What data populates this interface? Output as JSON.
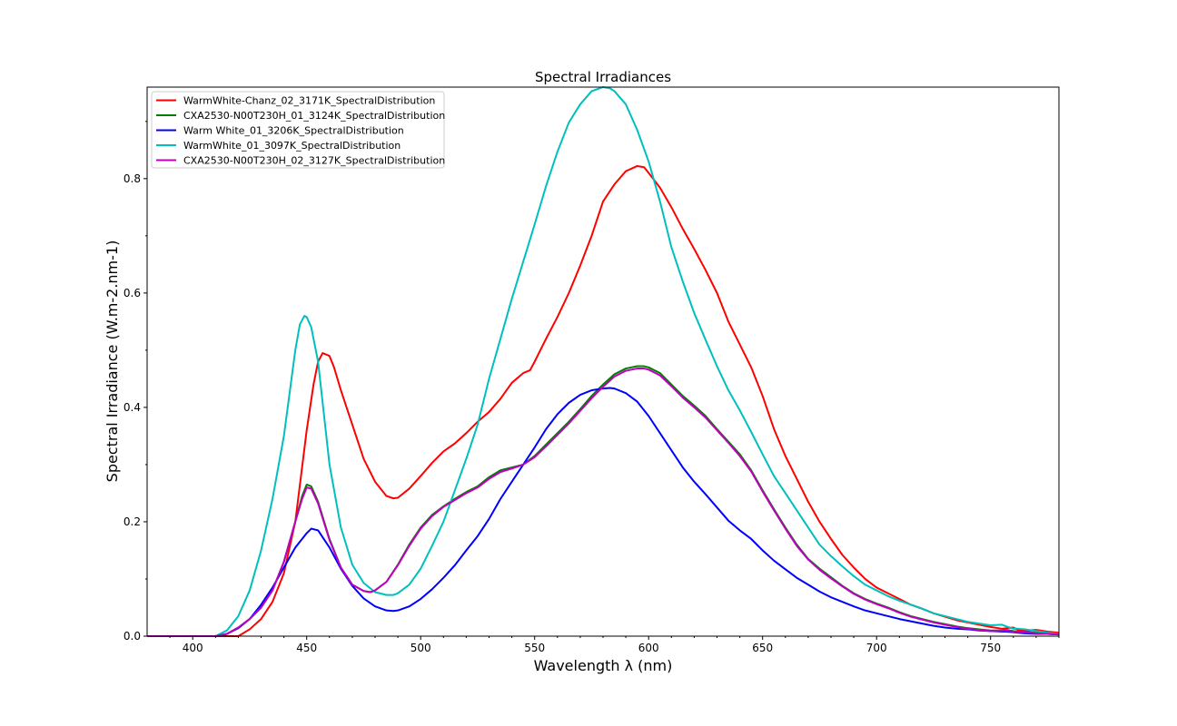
{
  "chart_data": {
    "type": "line",
    "title": "Spectral Irradiances",
    "xlabel": "Wavelength λ (nm)",
    "ylabel": "Spectral Irradiance (W.m-2.nm-1)",
    "xlim": [
      380,
      780
    ],
    "ylim": [
      0,
      0.96
    ],
    "xticks": [
      400,
      450,
      500,
      550,
      600,
      650,
      700,
      750
    ],
    "yticks": [
      0.0,
      0.2,
      0.4,
      0.6,
      0.8
    ],
    "xtick_labels": [
      "400",
      "450",
      "500",
      "550",
      "600",
      "650",
      "700",
      "750"
    ],
    "ytick_labels": [
      "0.0",
      "0.2",
      "0.4",
      "0.6",
      "0.8"
    ],
    "grid": false,
    "legend_position": "top-left",
    "series": [
      {
        "name": "WarmWhite-Chanz_02_3171K_SpectralDistribution",
        "color": "#ff0000",
        "x": [
          380,
          410,
          420,
          425,
          430,
          435,
          440,
          445,
          450,
          453,
          455,
          457,
          460,
          462,
          465,
          470,
          475,
          480,
          485,
          488,
          490,
          495,
          500,
          505,
          510,
          515,
          520,
          525,
          530,
          535,
          540,
          545,
          548,
          550,
          555,
          560,
          565,
          570,
          575,
          580,
          585,
          590,
          595,
          598,
          600,
          605,
          610,
          615,
          620,
          625,
          630,
          635,
          640,
          645,
          650,
          655,
          660,
          665,
          670,
          675,
          680,
          685,
          690,
          695,
          700,
          705,
          710,
          715,
          720,
          725,
          730,
          735,
          740,
          745,
          750,
          755,
          757,
          760,
          762,
          765,
          770,
          775,
          780
        ],
        "y": [
          0,
          0,
          0.0,
          0.012,
          0.03,
          0.06,
          0.11,
          0.2,
          0.36,
          0.44,
          0.48,
          0.495,
          0.49,
          0.47,
          0.43,
          0.37,
          0.31,
          0.27,
          0.245,
          0.241,
          0.242,
          0.258,
          0.28,
          0.303,
          0.323,
          0.337,
          0.355,
          0.375,
          0.392,
          0.415,
          0.443,
          0.46,
          0.465,
          0.48,
          0.52,
          0.558,
          0.6,
          0.648,
          0.7,
          0.76,
          0.79,
          0.813,
          0.822,
          0.82,
          0.81,
          0.784,
          0.75,
          0.712,
          0.677,
          0.64,
          0.6,
          0.55,
          0.51,
          0.47,
          0.42,
          0.362,
          0.315,
          0.275,
          0.235,
          0.2,
          0.17,
          0.142,
          0.12,
          0.1,
          0.085,
          0.075,
          0.065,
          0.055,
          0.048,
          0.04,
          0.034,
          0.028,
          0.024,
          0.02,
          0.016,
          0.013,
          0.014,
          0.015,
          0.011,
          0.01,
          0.011,
          0.008,
          0.006
        ]
      },
      {
        "name": "CXA2530-N00T230H_01_3124K_SpectralDistribution",
        "color": "#008000",
        "x": [
          380,
          410,
          415,
          420,
          425,
          430,
          435,
          440,
          445,
          448,
          450,
          452,
          455,
          460,
          465,
          470,
          475,
          478,
          480,
          485,
          490,
          495,
          500,
          505,
          510,
          515,
          520,
          525,
          530,
          535,
          540,
          545,
          550,
          555,
          560,
          565,
          570,
          575,
          580,
          585,
          590,
          595,
          598,
          600,
          605,
          610,
          615,
          620,
          625,
          630,
          635,
          640,
          645,
          650,
          655,
          660,
          665,
          670,
          675,
          680,
          685,
          690,
          695,
          700,
          705,
          710,
          715,
          720,
          725,
          730,
          735,
          740,
          745,
          750,
          755,
          757,
          760,
          762,
          765,
          770,
          775,
          780
        ],
        "y": [
          0,
          0,
          0.004,
          0.015,
          0.03,
          0.05,
          0.08,
          0.13,
          0.2,
          0.245,
          0.265,
          0.262,
          0.235,
          0.17,
          0.12,
          0.09,
          0.079,
          0.077,
          0.08,
          0.095,
          0.125,
          0.16,
          0.19,
          0.212,
          0.227,
          0.24,
          0.252,
          0.262,
          0.278,
          0.29,
          0.295,
          0.3,
          0.315,
          0.335,
          0.355,
          0.375,
          0.397,
          0.42,
          0.44,
          0.458,
          0.468,
          0.472,
          0.472,
          0.47,
          0.46,
          0.44,
          0.42,
          0.403,
          0.385,
          0.362,
          0.34,
          0.318,
          0.29,
          0.255,
          0.222,
          0.19,
          0.16,
          0.135,
          0.118,
          0.103,
          0.088,
          0.075,
          0.065,
          0.057,
          0.05,
          0.042,
          0.035,
          0.03,
          0.025,
          0.021,
          0.017,
          0.014,
          0.012,
          0.01,
          0.01,
          0.011,
          0.009,
          0.008,
          0.008,
          0.006,
          0.004,
          0.003
        ]
      },
      {
        "name": "Warm White_01_3206K_SpectralDistribution",
        "color": "#0000ff",
        "x": [
          380,
          410,
          415,
          420,
          425,
          430,
          435,
          440,
          445,
          450,
          452,
          455,
          460,
          465,
          470,
          475,
          480,
          485,
          488,
          490,
          495,
          500,
          505,
          510,
          515,
          520,
          525,
          530,
          535,
          540,
          545,
          550,
          555,
          560,
          565,
          570,
          575,
          580,
          583,
          585,
          590,
          595,
          600,
          605,
          610,
          615,
          620,
          625,
          630,
          635,
          640,
          645,
          650,
          655,
          660,
          665,
          670,
          675,
          680,
          685,
          690,
          695,
          700,
          705,
          710,
          715,
          720,
          725,
          730,
          735,
          740,
          745,
          750,
          755,
          757,
          760,
          762,
          765,
          770,
          775,
          780
        ],
        "y": [
          0,
          0,
          0.004,
          0.014,
          0.03,
          0.055,
          0.085,
          0.12,
          0.155,
          0.18,
          0.188,
          0.185,
          0.155,
          0.118,
          0.088,
          0.066,
          0.052,
          0.045,
          0.044,
          0.045,
          0.052,
          0.065,
          0.082,
          0.102,
          0.124,
          0.15,
          0.175,
          0.205,
          0.24,
          0.27,
          0.3,
          0.33,
          0.362,
          0.388,
          0.408,
          0.422,
          0.43,
          0.433,
          0.434,
          0.433,
          0.425,
          0.41,
          0.385,
          0.355,
          0.325,
          0.295,
          0.27,
          0.248,
          0.225,
          0.202,
          0.185,
          0.17,
          0.15,
          0.132,
          0.117,
          0.102,
          0.09,
          0.078,
          0.068,
          0.06,
          0.052,
          0.045,
          0.04,
          0.035,
          0.03,
          0.026,
          0.022,
          0.018,
          0.015,
          0.013,
          0.012,
          0.01,
          0.009,
          0.008,
          0.008,
          0.007,
          0.006,
          0.005,
          0.004,
          0.004,
          0.003
        ]
      },
      {
        "name": "WarmWhite_01_3097K_SpectralDistribution",
        "color": "#00bfbf",
        "x": [
          380,
          410,
          415,
          420,
          425,
          430,
          435,
          440,
          443,
          445,
          447,
          449,
          450,
          452,
          455,
          460,
          465,
          470,
          475,
          480,
          485,
          488,
          490,
          495,
          500,
          505,
          510,
          515,
          520,
          525,
          530,
          535,
          540,
          545,
          550,
          555,
          560,
          565,
          570,
          575,
          580,
          583,
          585,
          590,
          595,
          600,
          605,
          610,
          615,
          620,
          625,
          630,
          635,
          640,
          645,
          650,
          655,
          660,
          665,
          670,
          675,
          680,
          685,
          690,
          695,
          700,
          705,
          710,
          715,
          720,
          725,
          730,
          735,
          740,
          745,
          750,
          755,
          757,
          760,
          762,
          765,
          770,
          775,
          780
        ],
        "y": [
          0,
          0,
          0.01,
          0.035,
          0.08,
          0.15,
          0.24,
          0.35,
          0.44,
          0.5,
          0.545,
          0.56,
          0.558,
          0.54,
          0.48,
          0.3,
          0.19,
          0.125,
          0.093,
          0.077,
          0.072,
          0.072,
          0.075,
          0.09,
          0.118,
          0.158,
          0.2,
          0.255,
          0.31,
          0.37,
          0.45,
          0.52,
          0.59,
          0.655,
          0.72,
          0.787,
          0.847,
          0.898,
          0.93,
          0.953,
          0.96,
          0.958,
          0.953,
          0.93,
          0.885,
          0.83,
          0.76,
          0.68,
          0.62,
          0.565,
          0.518,
          0.472,
          0.43,
          0.395,
          0.357,
          0.318,
          0.28,
          0.25,
          0.22,
          0.19,
          0.16,
          0.14,
          0.122,
          0.105,
          0.09,
          0.08,
          0.07,
          0.062,
          0.055,
          0.048,
          0.04,
          0.035,
          0.03,
          0.025,
          0.022,
          0.019,
          0.02,
          0.017,
          0.013,
          0.013,
          0.012,
          0.009,
          0.006,
          0.004
        ]
      },
      {
        "name": "CXA2530-N00T230H_02_3127K_SpectralDistribution",
        "color": "#bf00bf",
        "x": [
          380,
          410,
          415,
          420,
          425,
          430,
          435,
          440,
          445,
          448,
          450,
          452,
          455,
          460,
          465,
          470,
          475,
          478,
          480,
          485,
          490,
          495,
          500,
          505,
          510,
          515,
          520,
          525,
          530,
          535,
          540,
          545,
          550,
          555,
          560,
          565,
          570,
          575,
          580,
          585,
          590,
          595,
          598,
          600,
          605,
          610,
          615,
          620,
          625,
          630,
          635,
          640,
          645,
          650,
          655,
          660,
          665,
          670,
          675,
          680,
          685,
          690,
          695,
          700,
          705,
          710,
          715,
          720,
          725,
          730,
          735,
          740,
          745,
          750,
          755,
          757,
          760,
          762,
          765,
          770,
          775,
          780
        ],
        "y": [
          0,
          0,
          0.004,
          0.015,
          0.03,
          0.05,
          0.08,
          0.13,
          0.2,
          0.24,
          0.26,
          0.258,
          0.232,
          0.168,
          0.12,
          0.09,
          0.079,
          0.077,
          0.08,
          0.095,
          0.124,
          0.158,
          0.188,
          0.21,
          0.226,
          0.238,
          0.25,
          0.26,
          0.275,
          0.287,
          0.293,
          0.3,
          0.313,
          0.332,
          0.352,
          0.372,
          0.394,
          0.416,
          0.436,
          0.454,
          0.464,
          0.468,
          0.468,
          0.466,
          0.456,
          0.437,
          0.417,
          0.4,
          0.382,
          0.36,
          0.338,
          0.315,
          0.288,
          0.253,
          0.22,
          0.188,
          0.158,
          0.134,
          0.116,
          0.101,
          0.087,
          0.074,
          0.064,
          0.056,
          0.049,
          0.041,
          0.034,
          0.029,
          0.024,
          0.02,
          0.016,
          0.013,
          0.011,
          0.009,
          0.009,
          0.01,
          0.008,
          0.007,
          0.007,
          0.005,
          0.004,
          0.003
        ]
      }
    ]
  }
}
